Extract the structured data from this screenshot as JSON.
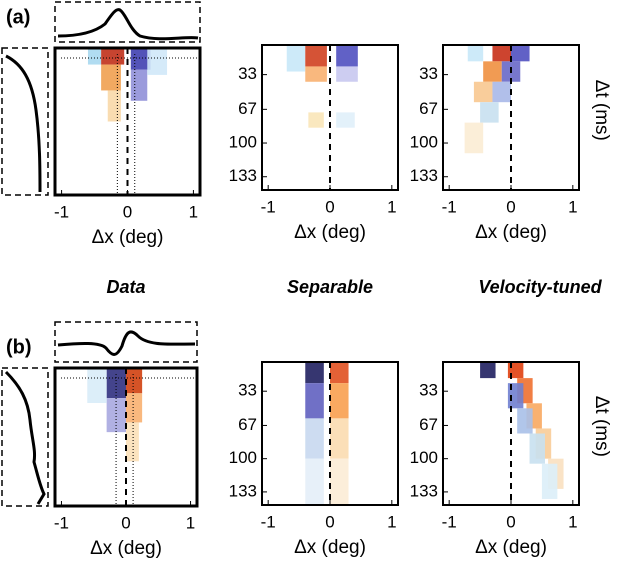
{
  "panel_labels": [
    "(a)",
    "(b)"
  ],
  "column_titles": [
    "Data",
    "Separable",
    "Velocity-tuned"
  ],
  "chart_data": [
    {
      "type": "heatmap",
      "xlabel": "Δx (deg)",
      "xlim": [
        -1.1,
        1.1
      ],
      "xticks": [
        -1,
        0,
        1
      ],
      "ylim": [
        4,
        146
      ]
    },
    {
      "type": "heatmap",
      "xlabel": "Δx (deg)",
      "xlim": [
        -1.1,
        1.1
      ],
      "xticks": [
        -1,
        0,
        1
      ],
      "ylim": [
        4,
        146
      ],
      "yticks": [
        33,
        67,
        100,
        133
      ]
    },
    {
      "type": "heatmap",
      "xlabel": "Δx (deg)",
      "xlim": [
        -1.1,
        1.1
      ],
      "xticks": [
        -1,
        0,
        1
      ],
      "ylim": [
        4,
        146
      ],
      "yticks": [
        33,
        67,
        100,
        133
      ],
      "ylabel": "Δt (ms)"
    },
    {
      "type": "heatmap",
      "xlabel": "Δx (deg)",
      "xlim": [
        -1.1,
        1.1
      ],
      "xticks": [
        -1,
        0,
        1
      ],
      "ylim": [
        4,
        146
      ]
    },
    {
      "type": "heatmap",
      "xlabel": "Δx (deg)",
      "xlim": [
        -1.1,
        1.1
      ],
      "xticks": [
        -1,
        0,
        1
      ],
      "ylim": [
        4,
        146
      ],
      "yticks": [
        33,
        67,
        100,
        133
      ]
    },
    {
      "type": "heatmap",
      "xlabel": "Δx (deg)",
      "xlim": [
        -1.1,
        1.1
      ],
      "xticks": [
        -1,
        0,
        1
      ],
      "ylim": [
        4,
        146
      ],
      "yticks": [
        33,
        67,
        100,
        133
      ],
      "ylabel": "Δt (ms)"
    }
  ]
}
